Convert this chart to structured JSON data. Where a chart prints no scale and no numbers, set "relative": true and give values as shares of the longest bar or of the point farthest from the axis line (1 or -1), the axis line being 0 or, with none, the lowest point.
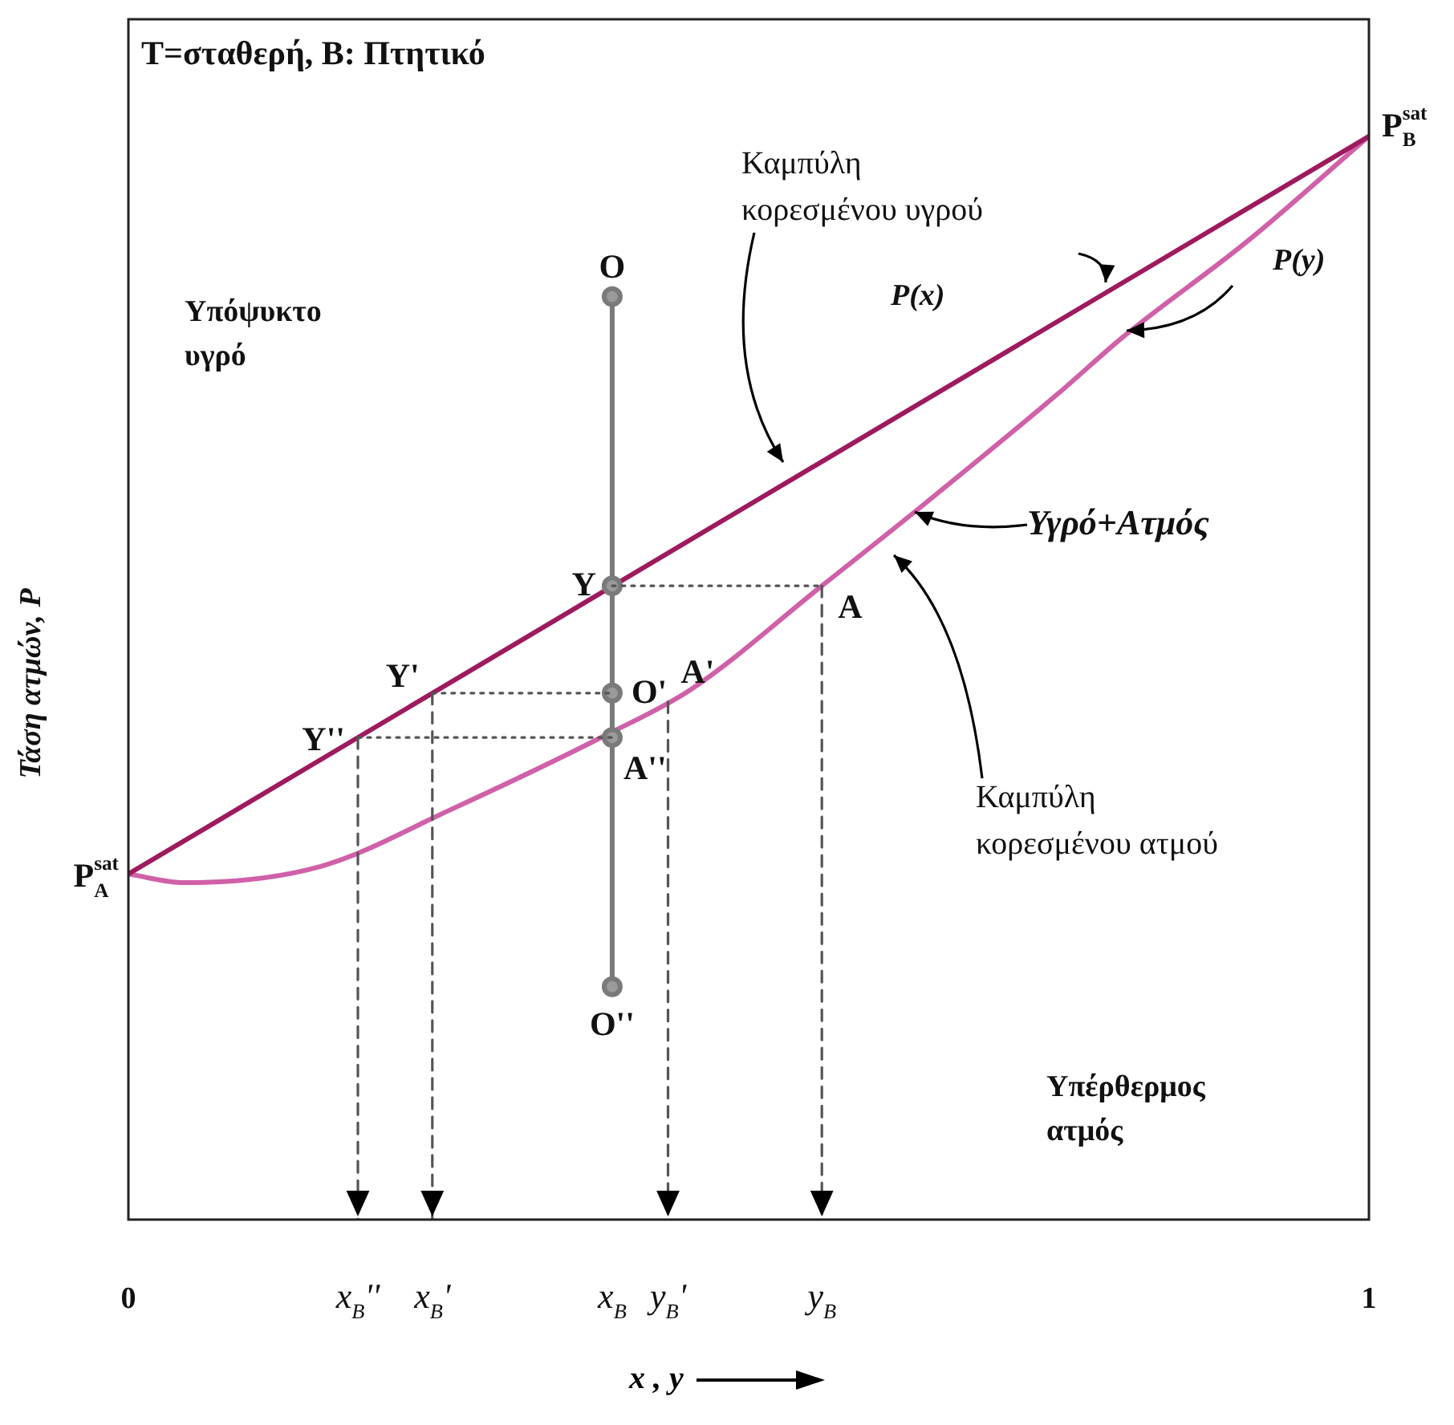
{
  "chart_data": {
    "type": "line",
    "title": "T=σταθερή, Β: Πτητικό",
    "xlabel": "x , y",
    "ylabel": "Τάση ατμών, P",
    "relative": true,
    "xlim": [
      0,
      1
    ],
    "xticks": [
      0,
      {
        "value": 0.185,
        "label": "x$_{B}$''"
      },
      {
        "value": 0.245,
        "label": "x$_{B}$'"
      },
      {
        "value": 0.39,
        "label": "x$_{B}$"
      },
      {
        "value": 0.435,
        "label": "y$_{B}$'"
      },
      {
        "value": 0.559,
        "label": "y$_{B}$"
      },
      1
    ],
    "tick_labels": "x",
    "legend": false,
    "marker": "none",
    "line_style": "solid",
    "series": [
      {
        "type": "line",
        "color": "#555555",
        "line_style": "dotted",
        "x": [
          0.39,
          0.559
        ],
        "values": [
          0.585,
          0.585
        ]
      },
      {
        "type": "line",
        "color": "#555555",
        "line_style": "dashed",
        "x": [
          0.559,
          0.559
        ],
        "values": [
          0.585,
          0
        ]
      },
      {
        "type": "line",
        "color": "#555555",
        "line_style": "dotted",
        "x": [
          0.245,
          0.39
        ],
        "values": [
          0.486,
          0.486
        ]
      },
      {
        "type": "line",
        "color": "#555555",
        "line_style": "dashed",
        "x": [
          0.245,
          0.245
        ],
        "values": [
          0.486,
          0
        ]
      },
      {
        "type": "line",
        "color": "#555555",
        "line_style": "dotted",
        "x": [
          0.185,
          0.39
        ],
        "values": [
          0.445,
          0.445
        ]
      },
      {
        "type": "line",
        "color": "#555555",
        "line_style": "dashed",
        "x": [
          0.185,
          0.185
        ],
        "values": [
          0.445,
          0
        ]
      },
      {
        "type": "line",
        "color": "#555555",
        "line_style": "dashed",
        "x": [
          0.435,
          0.435
        ],
        "values": [
          0.478,
          0
        ]
      },
      {
        "type": "line",
        "color": "#7a7a7a",
        "marker": "circle",
        "x": [
          0.39,
          0.39,
          0.39,
          0.39,
          0.39
        ],
        "values": [
          0.852,
          0.585,
          0.486,
          0.445,
          0.215
        ]
      },
      {
        "type": "line",
        "name": "P(x)",
        "color": "#9e1a5e",
        "x": [
          0,
          1
        ],
        "values": [
          0.319,
          1
        ]
      },
      {
        "type": "line",
        "name": "P(y)",
        "color": "#d060a8",
        "x": [
          0,
          0.045,
          0.155,
          0.259,
          0.388,
          0.453,
          0.559,
          0.64,
          0.75,
          0.802,
          0.903,
          1
        ],
        "values": [
          0.319,
          0.311,
          0.326,
          0.378,
          0.449,
          0.489,
          0.585,
          0.659,
          0.763,
          0.815,
          0.904,
          1
        ]
      }
    ],
    "annotations": [
      "Υπόψυκτο υγρό",
      "Καμπύλη κορεσμένου υγρού",
      "Υγρό+Ατμός",
      "Καμπύλη κορεσμένου ατμού",
      "Υπέρθερμος ατμός",
      {
        "text": "P$_{A}$$^{sat}$",
        "x": 0,
        "y": 0.319
      },
      {
        "text": "P$_{B}$$^{sat}$",
        "x": 1,
        "y": 1
      },
      {
        "text": "O",
        "x": 0.39,
        "y": 0.852
      },
      {
        "text": "Y",
        "x": 0.39,
        "y": 0.585
      },
      {
        "text": "O'",
        "x": 0.39,
        "y": 0.486
      },
      {
        "text": "A''",
        "x": 0.39,
        "y": 0.445
      },
      {
        "text": "O''",
        "x": 0.39,
        "y": 0.215
      },
      {
        "text": "Y'",
        "x": 0.245,
        "y": 0.486
      },
      {
        "text": "Y''",
        "x": 0.185,
        "y": 0.445
      },
      {
        "text": "A'",
        "x": 0.435,
        "y": 0.478
      },
      {
        "text": "A",
        "x": 0.559,
        "y": 0.585
      }
    ]
  }
}
